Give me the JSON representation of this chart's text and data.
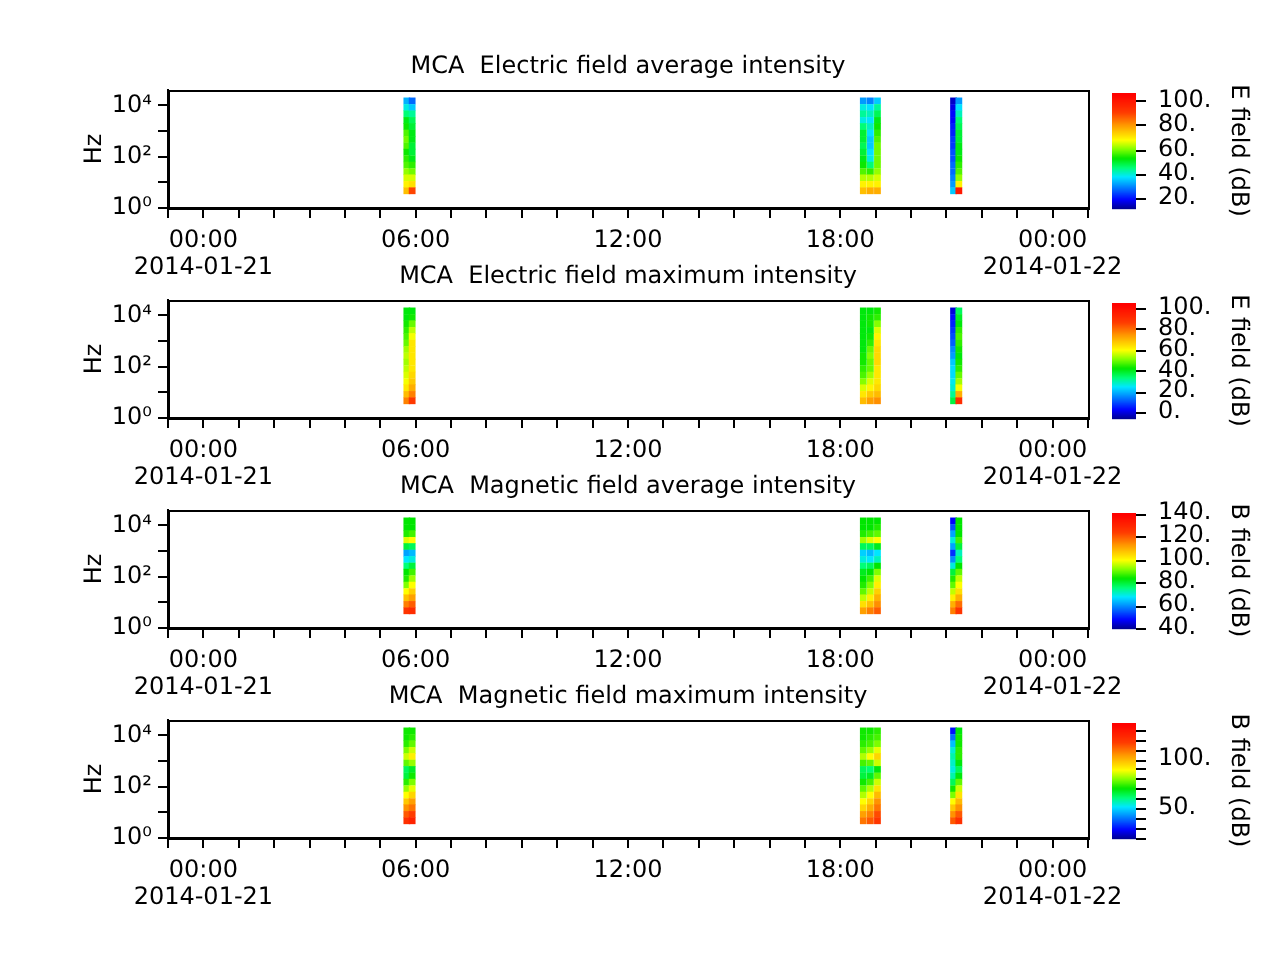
{
  "chart_data": [
    {
      "type": "scatter",
      "title": "MCA  Electric field average intensity",
      "ylabel": "Hz",
      "clabel": "E field (dB)",
      "marker": "square",
      "log": "y",
      "xlim": [
        -1,
        25
      ],
      "xticks": [
        {
          "value": -1,
          "label": null
        },
        {
          "value": 0,
          "label": "00:00\n2014-01-21"
        },
        {
          "value": 1,
          "label": null
        },
        {
          "value": 2,
          "label": null
        },
        {
          "value": 3,
          "label": null
        },
        {
          "value": 4,
          "label": null
        },
        {
          "value": 5,
          "label": null
        },
        {
          "value": 6,
          "label": "06:00"
        },
        {
          "value": 7,
          "label": null
        },
        {
          "value": 8,
          "label": null
        },
        {
          "value": 9,
          "label": null
        },
        {
          "value": 10,
          "label": null
        },
        {
          "value": 11,
          "label": null
        },
        {
          "value": 12,
          "label": "12:00"
        },
        {
          "value": 13,
          "label": null
        },
        {
          "value": 14,
          "label": null
        },
        {
          "value": 15,
          "label": null
        },
        {
          "value": 16,
          "label": null
        },
        {
          "value": 17,
          "label": null
        },
        {
          "value": 18,
          "label": "18:00"
        },
        {
          "value": 19,
          "label": null
        },
        {
          "value": 20,
          "label": null
        },
        {
          "value": 21,
          "label": null
        },
        {
          "value": 22,
          "label": null
        },
        {
          "value": 23,
          "label": null
        },
        {
          "value": 24,
          "label": "00:00\n2014-01-22"
        },
        {
          "value": 25,
          "label": null
        }
      ],
      "ylim": [
        1,
        40000
      ],
      "yticks": [
        {
          "value": 1,
          "label": "10⁰"
        },
        {
          "value": 10,
          "label": null
        },
        {
          "value": 100,
          "label": "10²"
        },
        {
          "value": 1000,
          "label": null
        },
        {
          "value": 10000,
          "label": "10⁴"
        }
      ],
      "clim": [
        12,
        106
      ],
      "cticks": [
        {
          "value": 20,
          "label": "20."
        },
        {
          "value": 40,
          "label": "40."
        },
        {
          "value": 60,
          "label": "60."
        },
        {
          "value": 80,
          "label": "80."
        },
        {
          "value": 100,
          "label": "100."
        }
      ],
      "x": [
        5.75,
        5.75,
        5.75,
        5.75,
        5.75,
        5.75,
        5.75,
        5.75,
        5.75,
        5.75,
        5.75,
        5.75,
        5.75,
        5.75,
        5.75,
        5.9,
        5.9,
        5.9,
        5.9,
        5.9,
        5.9,
        5.9,
        5.9,
        5.9,
        5.9,
        5.9,
        5.9,
        5.9,
        5.9,
        5.9,
        18.65,
        18.65,
        18.65,
        18.65,
        18.65,
        18.65,
        18.65,
        18.65,
        18.65,
        18.65,
        18.65,
        18.65,
        18.65,
        18.65,
        18.65,
        18.85,
        18.85,
        18.85,
        18.85,
        18.85,
        18.85,
        18.85,
        18.85,
        18.85,
        18.85,
        18.85,
        18.85,
        18.85,
        18.85,
        18.85,
        19.05,
        19.05,
        19.05,
        19.05,
        19.05,
        19.05,
        19.05,
        19.05,
        19.05,
        19.05,
        19.05,
        19.05,
        19.05,
        19.05,
        19.05,
        21.2,
        21.2,
        21.2,
        21.2,
        21.2,
        21.2,
        21.2,
        21.2,
        21.2,
        21.2,
        21.2,
        21.2,
        21.2,
        21.2,
        21.2,
        21.35,
        21.35,
        21.35,
        21.35,
        21.35,
        21.35,
        21.35,
        21.35,
        21.35,
        21.35,
        21.35,
        21.35,
        21.35,
        21.35,
        21.35
      ],
      "values": [
        15000,
        8300,
        4700,
        2600,
        1500,
        830,
        470,
        260,
        150,
        83,
        47,
        26,
        15,
        8.3,
        4.7,
        15000,
        8300,
        4700,
        2600,
        1500,
        830,
        470,
        260,
        150,
        83,
        47,
        26,
        15,
        8.3,
        4.7,
        15000,
        8300,
        4700,
        2600,
        1500,
        830,
        470,
        260,
        150,
        83,
        47,
        26,
        15,
        8.3,
        4.7,
        15000,
        8300,
        4700,
        2600,
        1500,
        830,
        470,
        260,
        150,
        83,
        47,
        26,
        15,
        8.3,
        4.7,
        15000,
        8300,
        4700,
        2600,
        1500,
        830,
        470,
        260,
        150,
        83,
        47,
        26,
        15,
        8.3,
        4.7,
        15000,
        8300,
        4700,
        2600,
        1500,
        830,
        470,
        260,
        150,
        83,
        47,
        26,
        15,
        8.3,
        4.7,
        15000,
        8300,
        4700,
        2600,
        1500,
        830,
        470,
        260,
        150,
        83,
        47,
        26,
        15,
        8.3,
        4.7
      ],
      "cvalues": [
        34,
        40,
        46,
        52,
        54,
        58,
        60,
        58,
        54,
        56,
        58,
        62,
        66,
        70,
        76,
        28,
        36,
        44,
        48,
        50,
        52,
        52,
        50,
        50,
        52,
        56,
        60,
        66,
        72,
        90,
        32,
        40,
        44,
        40,
        46,
        50,
        50,
        48,
        50,
        52,
        54,
        58,
        64,
        70,
        76,
        30,
        38,
        42,
        38,
        42,
        38,
        36,
        36,
        38,
        40,
        46,
        56,
        64,
        70,
        78,
        36,
        44,
        48,
        52,
        54,
        56,
        58,
        60,
        60,
        60,
        60,
        62,
        66,
        70,
        78,
        16,
        18,
        20,
        20,
        22,
        22,
        24,
        24,
        26,
        26,
        28,
        28,
        30,
        32,
        36,
        32,
        38,
        42,
        46,
        48,
        50,
        50,
        52,
        52,
        54,
        56,
        58,
        62,
        70,
        100
      ]
    },
    {
      "type": "scatter",
      "title": "MCA  Electric field maximum intensity",
      "ylabel": "Hz",
      "clabel": "E field (dB)",
      "marker": "square",
      "log": "y",
      "xlim": [
        -1,
        25
      ],
      "xticks": [
        {
          "value": -1,
          "label": null
        },
        {
          "value": 0,
          "label": "00:00\n2014-01-21"
        },
        {
          "value": 1,
          "label": null
        },
        {
          "value": 2,
          "label": null
        },
        {
          "value": 3,
          "label": null
        },
        {
          "value": 4,
          "label": null
        },
        {
          "value": 5,
          "label": null
        },
        {
          "value": 6,
          "label": "06:00"
        },
        {
          "value": 7,
          "label": null
        },
        {
          "value": 8,
          "label": null
        },
        {
          "value": 9,
          "label": null
        },
        {
          "value": 10,
          "label": null
        },
        {
          "value": 11,
          "label": null
        },
        {
          "value": 12,
          "label": "12:00"
        },
        {
          "value": 13,
          "label": null
        },
        {
          "value": 14,
          "label": null
        },
        {
          "value": 15,
          "label": null
        },
        {
          "value": 16,
          "label": null
        },
        {
          "value": 17,
          "label": null
        },
        {
          "value": 18,
          "label": "18:00"
        },
        {
          "value": 19,
          "label": null
        },
        {
          "value": 20,
          "label": null
        },
        {
          "value": 21,
          "label": null
        },
        {
          "value": 22,
          "label": null
        },
        {
          "value": 23,
          "label": null
        },
        {
          "value": 24,
          "label": "00:00\n2014-01-22"
        },
        {
          "value": 25,
          "label": null
        }
      ],
      "ylim": [
        1,
        40000
      ],
      "yticks": [
        {
          "value": 1,
          "label": "10⁰"
        },
        {
          "value": 10,
          "label": null
        },
        {
          "value": 100,
          "label": "10²"
        },
        {
          "value": 1000,
          "label": null
        },
        {
          "value": 10000,
          "label": "10⁴"
        }
      ],
      "clim": [
        -6,
        105
      ],
      "cticks": [
        {
          "value": 0,
          "label": "0."
        },
        {
          "value": 20,
          "label": "20."
        },
        {
          "value": 40,
          "label": "40."
        },
        {
          "value": 60,
          "label": "60."
        },
        {
          "value": 80,
          "label": "80."
        },
        {
          "value": 100,
          "label": "100."
        }
      ],
      "x": [
        5.75,
        5.75,
        5.75,
        5.75,
        5.75,
        5.75,
        5.75,
        5.75,
        5.75,
        5.75,
        5.75,
        5.75,
        5.75,
        5.75,
        5.75,
        5.9,
        5.9,
        5.9,
        5.9,
        5.9,
        5.9,
        5.9,
        5.9,
        5.9,
        5.9,
        5.9,
        5.9,
        5.9,
        5.9,
        5.9,
        18.65,
        18.65,
        18.65,
        18.65,
        18.65,
        18.65,
        18.65,
        18.65,
        18.65,
        18.65,
        18.65,
        18.65,
        18.65,
        18.65,
        18.65,
        18.85,
        18.85,
        18.85,
        18.85,
        18.85,
        18.85,
        18.85,
        18.85,
        18.85,
        18.85,
        18.85,
        18.85,
        18.85,
        18.85,
        18.85,
        19.05,
        19.05,
        19.05,
        19.05,
        19.05,
        19.05,
        19.05,
        19.05,
        19.05,
        19.05,
        19.05,
        19.05,
        19.05,
        19.05,
        19.05,
        21.2,
        21.2,
        21.2,
        21.2,
        21.2,
        21.2,
        21.2,
        21.2,
        21.2,
        21.2,
        21.2,
        21.2,
        21.2,
        21.2,
        21.2,
        21.35,
        21.35,
        21.35,
        21.35,
        21.35,
        21.35,
        21.35,
        21.35,
        21.35,
        21.35,
        21.35,
        21.35,
        21.35,
        21.35,
        21.35
      ],
      "values": [
        15000,
        8300,
        4700,
        2600,
        1500,
        830,
        470,
        260,
        150,
        83,
        47,
        26,
        15,
        8.3,
        4.7,
        15000,
        8300,
        4700,
        2600,
        1500,
        830,
        470,
        260,
        150,
        83,
        47,
        26,
        15,
        8.3,
        4.7,
        15000,
        8300,
        4700,
        2600,
        1500,
        830,
        470,
        260,
        150,
        83,
        47,
        26,
        15,
        8.3,
        4.7,
        15000,
        8300,
        4700,
        2600,
        1500,
        830,
        470,
        260,
        150,
        83,
        47,
        26,
        15,
        8.3,
        4.7,
        15000,
        8300,
        4700,
        2600,
        1500,
        830,
        470,
        260,
        150,
        83,
        47,
        26,
        15,
        8.3,
        4.7,
        15000,
        8300,
        4700,
        2600,
        1500,
        830,
        470,
        260,
        150,
        83,
        47,
        26,
        15,
        8.3,
        4.7,
        15000,
        8300,
        4700,
        2600,
        1500,
        830,
        470,
        260,
        150,
        83,
        47,
        26,
        15,
        8.3,
        4.7
      ],
      "cvalues": [
        42,
        42,
        44,
        46,
        48,
        50,
        54,
        56,
        54,
        56,
        58,
        60,
        64,
        70,
        78,
        42,
        44,
        50,
        56,
        60,
        64,
        64,
        64,
        64,
        64,
        66,
        68,
        72,
        78,
        88,
        42,
        42,
        42,
        42,
        42,
        42,
        42,
        44,
        44,
        46,
        48,
        52,
        58,
        64,
        70,
        42,
        44,
        44,
        42,
        44,
        46,
        50,
        52,
        50,
        50,
        54,
        58,
        62,
        68,
        74,
        44,
        46,
        52,
        58,
        62,
        64,
        66,
        66,
        66,
        64,
        64,
        64,
        66,
        70,
        76,
        0,
        4,
        6,
        8,
        10,
        12,
        16,
        18,
        22,
        24,
        24,
        26,
        28,
        32,
        38,
        36,
        40,
        42,
        46,
        48,
        46,
        44,
        42,
        44,
        46,
        50,
        54,
        60,
        72,
        92
      ]
    },
    {
      "type": "scatter",
      "title": "MCA  Magnetic field average intensity",
      "ylabel": "Hz",
      "clabel": "B field (dB)",
      "marker": "square",
      "log": "y",
      "xlim": [
        -1,
        25
      ],
      "xticks": [
        {
          "value": -1,
          "label": null
        },
        {
          "value": 0,
          "label": "00:00\n2014-01-21"
        },
        {
          "value": 1,
          "label": null
        },
        {
          "value": 2,
          "label": null
        },
        {
          "value": 3,
          "label": null
        },
        {
          "value": 4,
          "label": null
        },
        {
          "value": 5,
          "label": null
        },
        {
          "value": 6,
          "label": "06:00"
        },
        {
          "value": 7,
          "label": null
        },
        {
          "value": 8,
          "label": null
        },
        {
          "value": 9,
          "label": null
        },
        {
          "value": 10,
          "label": null
        },
        {
          "value": 11,
          "label": null
        },
        {
          "value": 12,
          "label": "12:00"
        },
        {
          "value": 13,
          "label": null
        },
        {
          "value": 14,
          "label": null
        },
        {
          "value": 15,
          "label": null
        },
        {
          "value": 16,
          "label": null
        },
        {
          "value": 17,
          "label": null
        },
        {
          "value": 18,
          "label": "18:00"
        },
        {
          "value": 19,
          "label": null
        },
        {
          "value": 20,
          "label": null
        },
        {
          "value": 21,
          "label": null
        },
        {
          "value": 22,
          "label": null
        },
        {
          "value": 23,
          "label": null
        },
        {
          "value": 24,
          "label": "00:00\n2014-01-22"
        },
        {
          "value": 25,
          "label": null
        }
      ],
      "ylim": [
        1,
        40000
      ],
      "yticks": [
        {
          "value": 1,
          "label": "10⁰"
        },
        {
          "value": 10,
          "label": null
        },
        {
          "value": 100,
          "label": "10²"
        },
        {
          "value": 1000,
          "label": null
        },
        {
          "value": 10000,
          "label": "10⁴"
        }
      ],
      "clim": [
        40,
        140
      ],
      "cticks": [
        {
          "value": 40,
          "label": "40."
        },
        {
          "value": 60,
          "label": "60."
        },
        {
          "value": 80,
          "label": "80."
        },
        {
          "value": 100,
          "label": "100."
        },
        {
          "value": 120,
          "label": "120."
        },
        {
          "value": 140,
          "label": "140."
        }
      ],
      "x": [
        5.75,
        5.75,
        5.75,
        5.75,
        5.75,
        5.75,
        5.75,
        5.75,
        5.75,
        5.75,
        5.75,
        5.75,
        5.75,
        5.75,
        5.75,
        5.9,
        5.9,
        5.9,
        5.9,
        5.9,
        5.9,
        5.9,
        5.9,
        5.9,
        5.9,
        5.9,
        5.9,
        5.9,
        5.9,
        5.9,
        18.65,
        18.65,
        18.65,
        18.65,
        18.65,
        18.65,
        18.65,
        18.65,
        18.65,
        18.65,
        18.65,
        18.65,
        18.65,
        18.65,
        18.65,
        18.85,
        18.85,
        18.85,
        18.85,
        18.85,
        18.85,
        18.85,
        18.85,
        18.85,
        18.85,
        18.85,
        18.85,
        18.85,
        18.85,
        18.85,
        19.05,
        19.05,
        19.05,
        19.05,
        19.05,
        19.05,
        19.05,
        19.05,
        19.05,
        19.05,
        19.05,
        19.05,
        19.05,
        19.05,
        19.05,
        21.2,
        21.2,
        21.2,
        21.2,
        21.2,
        21.2,
        21.2,
        21.2,
        21.2,
        21.2,
        21.2,
        21.2,
        21.2,
        21.2,
        21.2,
        21.35,
        21.35,
        21.35,
        21.35,
        21.35,
        21.35,
        21.35,
        21.35,
        21.35,
        21.35,
        21.35,
        21.35,
        21.35,
        21.35,
        21.35
      ],
      "values": [
        15000,
        8300,
        4700,
        2600,
        1500,
        830,
        470,
        260,
        150,
        83,
        47,
        26,
        15,
        8.3,
        4.7,
        15000,
        8300,
        4700,
        2600,
        1500,
        830,
        470,
        260,
        150,
        83,
        47,
        26,
        15,
        8.3,
        4.7,
        15000,
        8300,
        4700,
        2600,
        1500,
        830,
        470,
        260,
        150,
        83,
        47,
        26,
        15,
        8.3,
        4.7,
        15000,
        8300,
        4700,
        2600,
        1500,
        830,
        470,
        260,
        150,
        83,
        47,
        26,
        15,
        8.3,
        4.7,
        15000,
        8300,
        4700,
        2600,
        1500,
        830,
        470,
        260,
        150,
        83,
        47,
        26,
        15,
        8.3,
        4.7,
        15000,
        8300,
        4700,
        2600,
        1500,
        830,
        470,
        260,
        150,
        83,
        47,
        26,
        15,
        8.3,
        4.7,
        15000,
        8300,
        4700,
        2600,
        1500,
        830,
        470,
        260,
        150,
        83,
        47,
        26,
        15,
        8.3,
        4.7
      ],
      "cvalues": [
        84,
        84,
        86,
        98,
        80,
        62,
        68,
        76,
        84,
        86,
        92,
        100,
        108,
        116,
        126,
        84,
        84,
        88,
        100,
        78,
        64,
        70,
        80,
        88,
        94,
        100,
        106,
        112,
        120,
        128,
        84,
        84,
        86,
        94,
        78,
        66,
        70,
        76,
        82,
        84,
        86,
        90,
        96,
        104,
        112,
        84,
        84,
        88,
        98,
        78,
        64,
        68,
        78,
        84,
        88,
        92,
        96,
        102,
        108,
        116,
        84,
        86,
        90,
        100,
        82,
        68,
        72,
        84,
        92,
        98,
        102,
        106,
        110,
        114,
        120,
        48,
        55,
        62,
        70,
        62,
        52,
        60,
        70,
        80,
        86,
        90,
        96,
        102,
        110,
        116,
        84,
        84,
        84,
        88,
        80,
        72,
        76,
        84,
        90,
        96,
        100,
        104,
        110,
        118,
        126
      ]
    },
    {
      "type": "scatter",
      "title": "MCA  Magnetic field maximum intensity",
      "ylabel": "Hz",
      "clabel": "B field (dB)",
      "marker": "square",
      "log": "y",
      "xlim": [
        -1,
        25
      ],
      "xticks": [
        {
          "value": -1,
          "label": null
        },
        {
          "value": 0,
          "label": "00:00\n2014-01-21"
        },
        {
          "value": 1,
          "label": null
        },
        {
          "value": 2,
          "label": null
        },
        {
          "value": 3,
          "label": null
        },
        {
          "value": 4,
          "label": null
        },
        {
          "value": 5,
          "label": null
        },
        {
          "value": 6,
          "label": "06:00"
        },
        {
          "value": 7,
          "label": null
        },
        {
          "value": 8,
          "label": null
        },
        {
          "value": 9,
          "label": null
        },
        {
          "value": 10,
          "label": null
        },
        {
          "value": 11,
          "label": null
        },
        {
          "value": 12,
          "label": "12:00"
        },
        {
          "value": 13,
          "label": null
        },
        {
          "value": 14,
          "label": null
        },
        {
          "value": 15,
          "label": null
        },
        {
          "value": 16,
          "label": null
        },
        {
          "value": 17,
          "label": null
        },
        {
          "value": 18,
          "label": "18:00"
        },
        {
          "value": 19,
          "label": null
        },
        {
          "value": 20,
          "label": null
        },
        {
          "value": 21,
          "label": null
        },
        {
          "value": 22,
          "label": null
        },
        {
          "value": 23,
          "label": null
        },
        {
          "value": 24,
          "label": "00:00\n2014-01-22"
        },
        {
          "value": 25,
          "label": null
        }
      ],
      "ylim": [
        1,
        40000
      ],
      "yticks": [
        {
          "value": 1,
          "label": "10⁰"
        },
        {
          "value": 10,
          "label": null
        },
        {
          "value": 100,
          "label": "10²"
        },
        {
          "value": 1000,
          "label": null
        },
        {
          "value": 10000,
          "label": "10⁴"
        }
      ],
      "clim": [
        19,
        137
      ],
      "cticks": [
        {
          "value": 20,
          "label": null
        },
        {
          "value": 30,
          "label": null
        },
        {
          "value": 40,
          "label": null
        },
        {
          "value": 50,
          "label": "50."
        },
        {
          "value": 60,
          "label": null
        },
        {
          "value": 70,
          "label": null
        },
        {
          "value": 80,
          "label": null
        },
        {
          "value": 90,
          "label": null
        },
        {
          "value": 100,
          "label": "100."
        },
        {
          "value": 110,
          "label": null
        },
        {
          "value": 120,
          "label": null
        },
        {
          "value": 130,
          "label": null
        }
      ],
      "x": [
        5.75,
        5.75,
        5.75,
        5.75,
        5.75,
        5.75,
        5.75,
        5.75,
        5.75,
        5.75,
        5.75,
        5.75,
        5.75,
        5.75,
        5.75,
        5.9,
        5.9,
        5.9,
        5.9,
        5.9,
        5.9,
        5.9,
        5.9,
        5.9,
        5.9,
        5.9,
        5.9,
        5.9,
        5.9,
        5.9,
        18.65,
        18.65,
        18.65,
        18.65,
        18.65,
        18.65,
        18.65,
        18.65,
        18.65,
        18.65,
        18.65,
        18.65,
        18.65,
        18.65,
        18.65,
        18.85,
        18.85,
        18.85,
        18.85,
        18.85,
        18.85,
        18.85,
        18.85,
        18.85,
        18.85,
        18.85,
        18.85,
        18.85,
        18.85,
        18.85,
        19.05,
        19.05,
        19.05,
        19.05,
        19.05,
        19.05,
        19.05,
        19.05,
        19.05,
        19.05,
        19.05,
        19.05,
        19.05,
        19.05,
        19.05,
        21.2,
        21.2,
        21.2,
        21.2,
        21.2,
        21.2,
        21.2,
        21.2,
        21.2,
        21.2,
        21.2,
        21.2,
        21.2,
        21.2,
        21.2,
        21.35,
        21.35,
        21.35,
        21.35,
        21.35,
        21.35,
        21.35,
        21.35,
        21.35,
        21.35,
        21.35,
        21.35,
        21.35,
        21.35,
        21.35
      ],
      "values": [
        15000,
        8300,
        4700,
        2600,
        1500,
        830,
        470,
        260,
        150,
        83,
        47,
        26,
        15,
        8.3,
        4.7,
        15000,
        8300,
        4700,
        2600,
        1500,
        830,
        470,
        260,
        150,
        83,
        47,
        26,
        15,
        8.3,
        4.7,
        15000,
        8300,
        4700,
        2600,
        1500,
        830,
        470,
        260,
        150,
        83,
        47,
        26,
        15,
        8.3,
        4.7,
        15000,
        8300,
        4700,
        2600,
        1500,
        830,
        470,
        260,
        150,
        83,
        47,
        26,
        15,
        8.3,
        4.7,
        15000,
        8300,
        4700,
        2600,
        1500,
        830,
        470,
        260,
        150,
        83,
        47,
        26,
        15,
        8.3,
        4.7,
        15000,
        8300,
        4700,
        2600,
        1500,
        830,
        470,
        260,
        150,
        83,
        47,
        26,
        15,
        8.3,
        4.7,
        15000,
        8300,
        4700,
        2600,
        1500,
        830,
        470,
        260,
        150,
        83,
        47,
        26,
        15,
        8.3,
        4.7
      ],
      "cvalues": [
        72,
        72,
        74,
        80,
        86,
        78,
        64,
        66,
        74,
        82,
        90,
        98,
        106,
        114,
        122,
        72,
        74,
        78,
        86,
        92,
        82,
        68,
        72,
        80,
        88,
        96,
        104,
        110,
        118,
        126,
        72,
        72,
        74,
        78,
        84,
        76,
        64,
        66,
        72,
        78,
        84,
        90,
        96,
        104,
        110,
        72,
        74,
        76,
        82,
        90,
        78,
        62,
        68,
        76,
        84,
        90,
        96,
        102,
        108,
        114,
        74,
        76,
        80,
        88,
        96,
        86,
        70,
        78,
        86,
        94,
        100,
        106,
        110,
        116,
        120,
        30,
        40,
        48,
        55,
        58,
        56,
        54,
        58,
        64,
        72,
        80,
        90,
        98,
        106,
        114,
        70,
        72,
        72,
        74,
        74,
        70,
        64,
        70,
        78,
        86,
        94,
        100,
        106,
        114,
        122
      ]
    }
  ]
}
